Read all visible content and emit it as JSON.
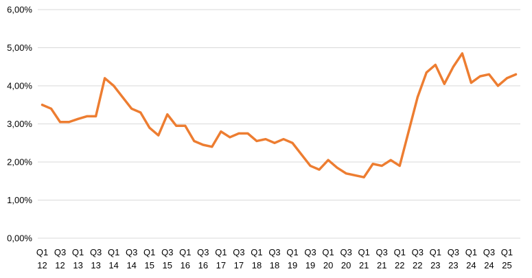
{
  "chart_data": {
    "type": "line",
    "title": "",
    "xlabel": "",
    "ylabel": "",
    "ylim": [
      0,
      6
    ],
    "y_ticks": [
      0,
      1,
      2,
      3,
      4,
      5,
      6
    ],
    "y_tick_labels": [
      "0,00%",
      "1,00%",
      "2,00%",
      "3,00%",
      "4,00%",
      "5,00%",
      "6,00%"
    ],
    "grid": "horizontal",
    "legend": "none",
    "line_color": "#ED7D31",
    "x": [
      "Q1 12",
      "Q2 12",
      "Q3 12",
      "Q4 12",
      "Q1 13",
      "Q2 13",
      "Q3 13",
      "Q4 13",
      "Q1 14",
      "Q2 14",
      "Q3 14",
      "Q4 14",
      "Q1 15",
      "Q2 15",
      "Q3 15",
      "Q4 15",
      "Q1 16",
      "Q2 16",
      "Q3 16",
      "Q4 16",
      "Q1 17",
      "Q2 17",
      "Q3 17",
      "Q4 17",
      "Q1 18",
      "Q2 18",
      "Q3 18",
      "Q4 18",
      "Q1 19",
      "Q2 19",
      "Q3 19",
      "Q4 19",
      "Q1 20",
      "Q2 20",
      "Q3 20",
      "Q4 20",
      "Q1 21",
      "Q2 21",
      "Q3 21",
      "Q4 21",
      "Q1 22",
      "Q2 22",
      "Q3 22",
      "Q4 22",
      "Q1 23",
      "Q2 23",
      "Q3 23",
      "Q4 23",
      "Q1 24",
      "Q2 24",
      "Q3 24",
      "Q4 24",
      "Q1 25",
      "Q2 25"
    ],
    "tick_labels": [
      {
        "top": "Q1",
        "bottom": "12"
      },
      {
        "top": "Q3",
        "bottom": "12"
      },
      {
        "top": "Q1",
        "bottom": "13"
      },
      {
        "top": "Q3",
        "bottom": "13"
      },
      {
        "top": "Q1",
        "bottom": "14"
      },
      {
        "top": "Q3",
        "bottom": "14"
      },
      {
        "top": "Q1",
        "bottom": "15"
      },
      {
        "top": "Q3",
        "bottom": "15"
      },
      {
        "top": "Q1",
        "bottom": "16"
      },
      {
        "top": "Q3",
        "bottom": "16"
      },
      {
        "top": "Q1",
        "bottom": "17"
      },
      {
        "top": "Q3",
        "bottom": "17"
      },
      {
        "top": "Q1",
        "bottom": "18"
      },
      {
        "top": "Q3",
        "bottom": "18"
      },
      {
        "top": "Q1",
        "bottom": "19"
      },
      {
        "top": "Q3",
        "bottom": "19"
      },
      {
        "top": "Q1",
        "bottom": "20"
      },
      {
        "top": "Q3",
        "bottom": "20"
      },
      {
        "top": "Q1",
        "bottom": "21"
      },
      {
        "top": "Q3",
        "bottom": "21"
      },
      {
        "top": "Q1",
        "bottom": "22"
      },
      {
        "top": "Q3",
        "bottom": "22"
      },
      {
        "top": "Q1",
        "bottom": "23"
      },
      {
        "top": "Q3",
        "bottom": "23"
      },
      {
        "top": "Q1",
        "bottom": "24"
      },
      {
        "top": "Q3",
        "bottom": "24"
      },
      {
        "top": "Q1",
        "bottom": "25"
      }
    ],
    "series": [
      {
        "values": [
          3.5,
          3.4,
          3.05,
          3.05,
          3.13,
          3.2,
          3.2,
          4.2,
          4.0,
          3.7,
          3.4,
          3.3,
          2.9,
          2.7,
          3.25,
          2.95,
          2.95,
          2.55,
          2.45,
          2.4,
          2.8,
          2.65,
          2.75,
          2.75,
          2.55,
          2.6,
          2.5,
          2.6,
          2.5,
          2.2,
          1.9,
          1.8,
          2.05,
          1.85,
          1.7,
          1.65,
          1.6,
          1.95,
          1.9,
          2.05,
          1.9,
          2.8,
          3.7,
          4.35,
          4.55,
          4.05,
          4.5,
          4.85,
          4.08,
          4.25,
          4.3,
          4.0,
          4.2,
          4.3
        ]
      }
    ]
  }
}
